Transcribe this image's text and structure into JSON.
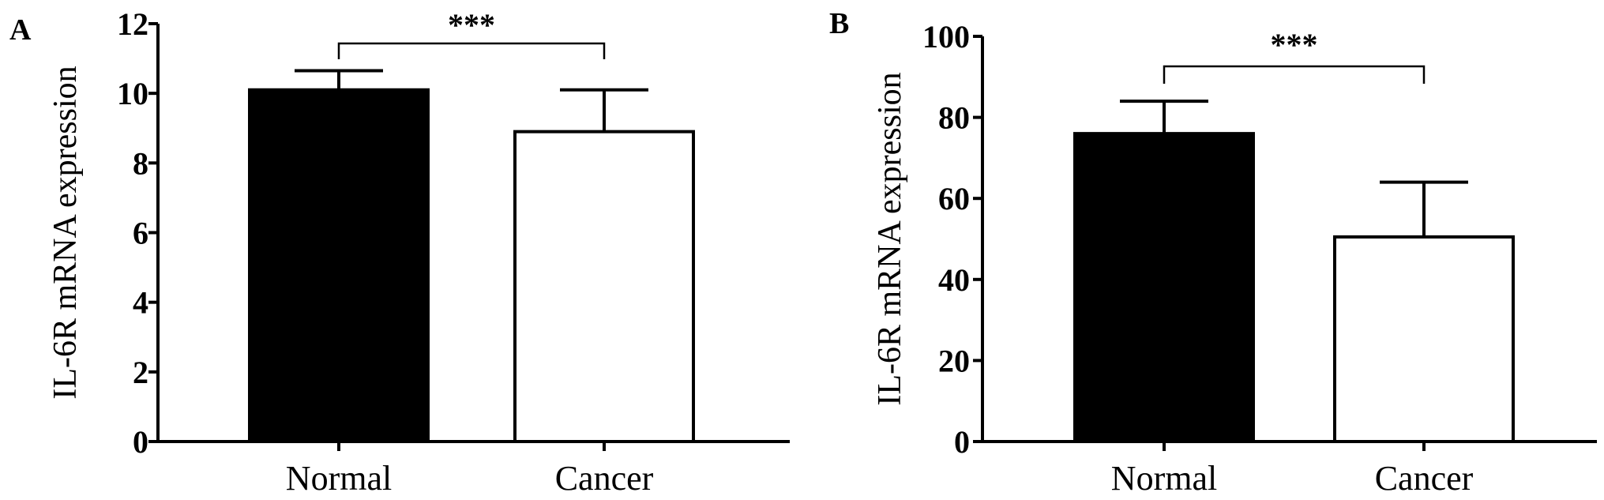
{
  "figure": {
    "panels": [
      "A",
      "B"
    ]
  },
  "chart_data": [
    {
      "panel": "A",
      "type": "bar",
      "categories": [
        "Normal",
        "Cancer"
      ],
      "values": [
        10.1,
        8.9
      ],
      "errors": [
        0.55,
        1.2
      ],
      "bar_colors": [
        "#000000",
        "#ffffff"
      ],
      "ylabel": "IL-6R mRNA expression",
      "xlabel": "",
      "ylim": [
        0,
        12
      ],
      "yticks": [
        0,
        2,
        4,
        6,
        8,
        10,
        12
      ],
      "annotation": "***",
      "grid": false
    },
    {
      "panel": "B",
      "type": "bar",
      "categories": [
        "Normal",
        "Cancer"
      ],
      "values": [
        76,
        50.5
      ],
      "errors": [
        8,
        13.5
      ],
      "bar_colors": [
        "#000000",
        "#ffffff"
      ],
      "ylabel": "IL-6R mRNA expression",
      "xlabel": "",
      "ylim": [
        0,
        100
      ],
      "yticks": [
        0,
        20,
        40,
        60,
        80,
        100
      ],
      "annotation": "***",
      "grid": false
    }
  ]
}
